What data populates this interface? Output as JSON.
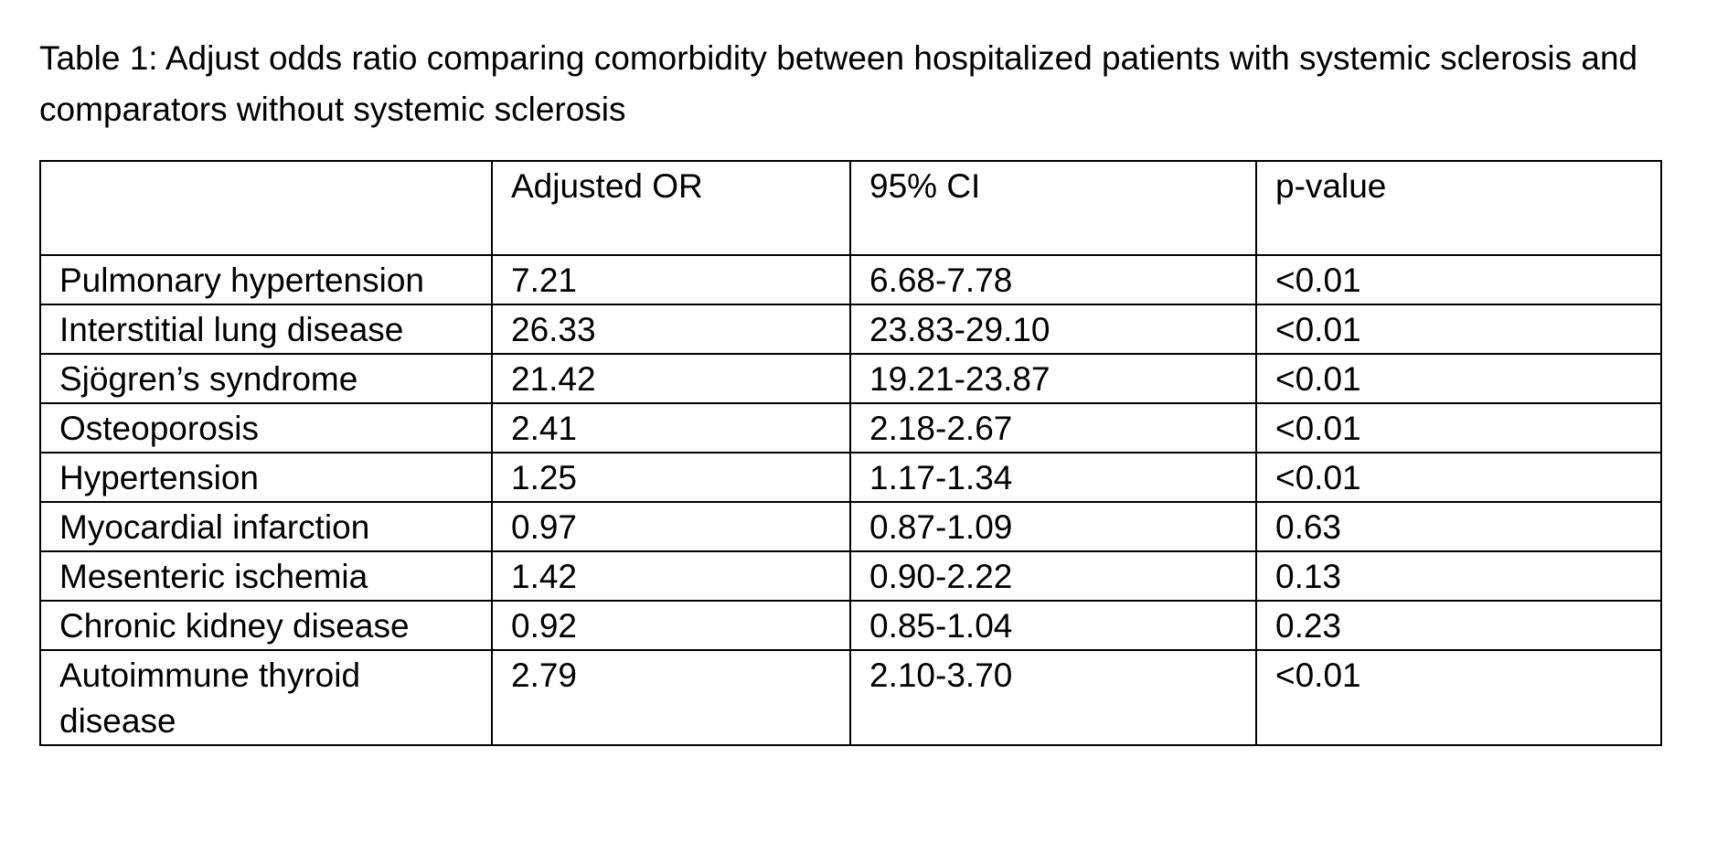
{
  "document": {
    "caption": "Table 1: Adjust odds ratio comparing comorbidity between hospitalized patients with systemic sclerosis and comparators without systemic sclerosis",
    "table": {
      "headers": [
        "",
        "Adjusted OR",
        "95% CI",
        "p-value"
      ],
      "rows": [
        [
          "Pulmonary hypertension",
          "7.21",
          "6.68-7.78",
          "<0.01"
        ],
        [
          "Interstitial lung disease",
          "26.33",
          "23.83-29.10",
          "<0.01"
        ],
        [
          "Sjögren’s syndrome",
          "21.42",
          "19.21-23.87",
          "<0.01"
        ],
        [
          "Osteoporosis",
          "2.41",
          "2.18-2.67",
          "<0.01"
        ],
        [
          "Hypertension",
          "1.25",
          "1.17-1.34",
          "<0.01"
        ],
        [
          "Myocardial infarction",
          "0.97",
          "0.87-1.09",
          "0.63"
        ],
        [
          "Mesenteric ischemia",
          "1.42",
          "0.90-2.22",
          "0.13"
        ],
        [
          "Chronic kidney disease",
          "0.92",
          "0.85-1.04",
          "0.23"
        ],
        [
          "Autoimmune thyroid disease",
          "2.79",
          "2.10-3.70",
          "<0.01"
        ]
      ]
    }
  }
}
